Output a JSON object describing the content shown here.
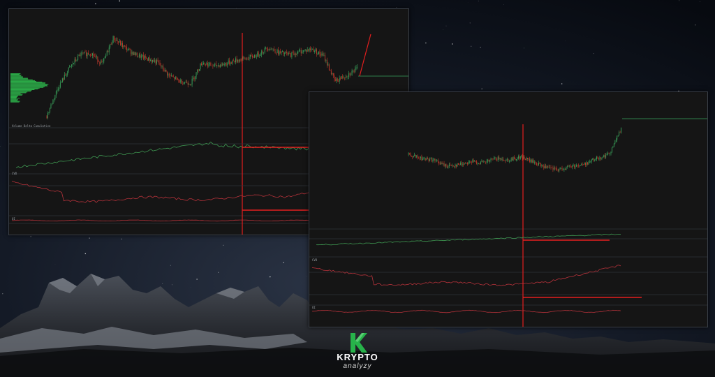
{
  "brand": {
    "name": "KRYPTO",
    "tagline": "analyzy",
    "accent": "#27b34a"
  },
  "colors": {
    "up": "#3aa55c",
    "down": "#c0392b",
    "annotation": "#e41e1e",
    "volume_profile": "#2db84c",
    "indicator_green": "#3f9a52",
    "indicator_red": "#b5323a",
    "panel_bg": "#151515"
  },
  "left_panel": {
    "price_title": "",
    "pane_titles": [
      "Volume Delta Cumulative",
      "CVD",
      "OI"
    ]
  },
  "right_panel": {
    "pane_titles": [
      "CVD",
      "OI"
    ]
  },
  "chart_data": [
    {
      "type": "line",
      "title": "",
      "panes": [
        "price",
        "cumulative delta (longs)",
        "cumulative delta (shorts)",
        "open interest delta"
      ],
      "price_series_shape": [
        0.05,
        0.35,
        0.55,
        0.7,
        0.72,
        0.6,
        0.88,
        0.78,
        0.7,
        0.66,
        0.62,
        0.48,
        0.42,
        0.4,
        0.62,
        0.58,
        0.6,
        0.64,
        0.66,
        0.7,
        0.78,
        0.72,
        0.7,
        0.74,
        0.76,
        0.68,
        0.42,
        0.48,
        0.55
      ],
      "annotation_arrows": [
        "price up",
        "longs up",
        "shorts down"
      ],
      "grid": true
    },
    {
      "type": "line",
      "title": "",
      "panes": [
        "price",
        "cumulative delta (longs)",
        "cumulative delta (shorts)",
        "open interest delta"
      ],
      "price_series_shape": [
        0.55,
        0.5,
        0.48,
        0.4,
        0.42,
        0.46,
        0.44,
        0.5,
        0.48,
        0.52,
        0.45,
        0.38,
        0.35,
        0.4,
        0.42,
        0.5,
        0.55,
        0.88
      ],
      "grid": true
    }
  ]
}
